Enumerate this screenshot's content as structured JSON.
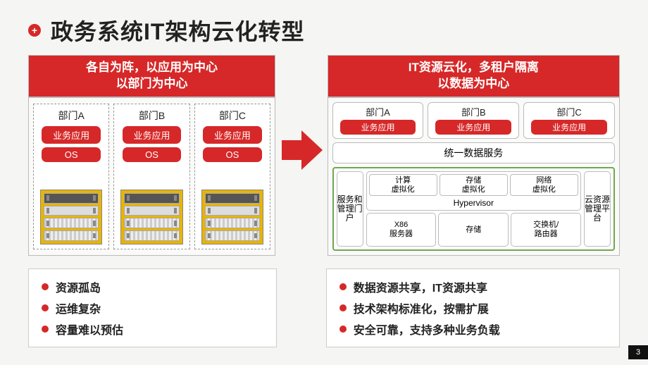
{
  "colors": {
    "primary": "#d62828",
    "green_border": "#6fa84f",
    "bg": "#f5f5f3",
    "hw_yellow": "#e8b400",
    "text": "#222222"
  },
  "title": "政务系统IT架构云化转型",
  "page_number": "3",
  "left": {
    "banner_line1": "各自为阵，以应用为中心",
    "banner_line2": "以部门为中心",
    "silos": [
      {
        "name": "部门A",
        "app": "业务应用",
        "os": "OS"
      },
      {
        "name": "部门B",
        "app": "业务应用",
        "os": "OS"
      },
      {
        "name": "部门C",
        "app": "业务应用",
        "os": "OS"
      }
    ],
    "bullets": [
      "资源孤岛",
      "运维复杂",
      "容量难以预估"
    ]
  },
  "right": {
    "banner_line1": "IT资源云化，多租户隔离",
    "banner_line2": "以数据为中心",
    "depts": [
      {
        "name": "部门A",
        "app": "业务应用"
      },
      {
        "name": "部门B",
        "app": "业务应用"
      },
      {
        "name": "部门C",
        "app": "业务应用"
      }
    ],
    "data_service": "统一数据服务",
    "portal": "服务和管理门户",
    "cloud_mgmt": "云资源管理平台",
    "virt": {
      "compute": "计算\n虚拟化",
      "storage": "存储\n虚拟化",
      "network": "网络\n虚拟化",
      "hypervisor": "Hypervisor"
    },
    "hw": {
      "x86": "X86\n服务器",
      "storage": "存储",
      "switch": "交换机/\n路由器"
    },
    "bullets": [
      "数据资源共享，IT资源共享",
      "技术架构标准化，按需扩展",
      "安全可靠，支持多种业务负载"
    ]
  }
}
